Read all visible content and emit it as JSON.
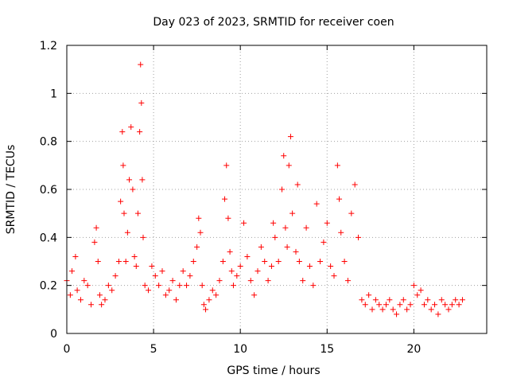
{
  "chart_data": {
    "type": "scatter",
    "title": "Day 023 of 2023, SRMTID for receiver coen",
    "xlabel": "GPS time / hours",
    "ylabel": "SRMTID / TECUs",
    "xlim": [
      0,
      24.2
    ],
    "ylim": [
      0,
      1.2
    ],
    "xticks": [
      0,
      5,
      10,
      15,
      20
    ],
    "xtick_labels": [
      "0",
      "5",
      "10",
      "15",
      "20"
    ],
    "yticks": [
      0,
      0.2,
      0.4,
      0.6,
      0.8,
      1.0,
      1.2
    ],
    "ytick_labels": [
      "0",
      "0.2",
      "0.4",
      "0.6",
      "0.8",
      "1",
      "1.2"
    ],
    "grid": true,
    "marker": "+",
    "color": "#ff0000",
    "series": [
      {
        "name": "SRMTID",
        "x": [
          0.0,
          0.2,
          0.3,
          0.5,
          0.6,
          0.8,
          1.0,
          1.2,
          1.4,
          1.6,
          1.7,
          1.8,
          1.9,
          2.0,
          2.2,
          2.4,
          2.6,
          2.8,
          3.0,
          3.1,
          3.2,
          3.25,
          3.3,
          3.4,
          3.5,
          3.6,
          3.7,
          3.8,
          3.9,
          4.0,
          4.1,
          4.2,
          4.25,
          4.3,
          4.35,
          4.4,
          4.5,
          4.7,
          4.9,
          5.1,
          5.3,
          5.5,
          5.7,
          5.9,
          6.1,
          6.3,
          6.5,
          6.7,
          6.9,
          7.1,
          7.3,
          7.5,
          7.6,
          7.7,
          7.8,
          7.9,
          8.0,
          8.2,
          8.4,
          8.6,
          8.8,
          9.0,
          9.1,
          9.2,
          9.3,
          9.4,
          9.5,
          9.6,
          9.8,
          10.0,
          10.2,
          10.4,
          10.6,
          10.8,
          11.0,
          11.2,
          11.4,
          11.6,
          11.8,
          11.9,
          12.0,
          12.2,
          12.4,
          12.5,
          12.6,
          12.7,
          12.8,
          12.9,
          13.0,
          13.2,
          13.3,
          13.4,
          13.6,
          13.8,
          14.0,
          14.2,
          14.4,
          14.6,
          14.8,
          15.0,
          15.2,
          15.4,
          15.6,
          15.7,
          15.8,
          16.0,
          16.2,
          16.4,
          16.6,
          16.8,
          17.0,
          17.2,
          17.4,
          17.6,
          17.8,
          18.0,
          18.2,
          18.4,
          18.6,
          18.8,
          19.0,
          19.2,
          19.4,
          19.6,
          19.8,
          20.0,
          20.2,
          20.4,
          20.6,
          20.8,
          21.0,
          21.2,
          21.4,
          21.6,
          21.8,
          22.0,
          22.2,
          22.4,
          22.6,
          22.8
        ],
        "y": [
          0.22,
          0.16,
          0.26,
          0.32,
          0.18,
          0.14,
          0.22,
          0.2,
          0.12,
          0.38,
          0.44,
          0.3,
          0.16,
          0.12,
          0.14,
          0.2,
          0.18,
          0.24,
          0.3,
          0.55,
          0.84,
          0.7,
          0.5,
          0.3,
          0.42,
          0.64,
          0.86,
          0.6,
          0.32,
          0.28,
          0.5,
          0.84,
          1.12,
          0.96,
          0.64,
          0.4,
          0.2,
          0.18,
          0.28,
          0.24,
          0.2,
          0.26,
          0.16,
          0.18,
          0.22,
          0.14,
          0.2,
          0.26,
          0.2,
          0.24,
          0.3,
          0.36,
          0.48,
          0.42,
          0.2,
          0.12,
          0.1,
          0.14,
          0.18,
          0.16,
          0.22,
          0.3,
          0.56,
          0.7,
          0.48,
          0.34,
          0.26,
          0.2,
          0.24,
          0.28,
          0.46,
          0.32,
          0.22,
          0.16,
          0.26,
          0.36,
          0.3,
          0.22,
          0.28,
          0.46,
          0.4,
          0.3,
          0.6,
          0.74,
          0.44,
          0.36,
          0.7,
          0.82,
          0.5,
          0.34,
          0.62,
          0.3,
          0.22,
          0.44,
          0.28,
          0.2,
          0.54,
          0.3,
          0.38,
          0.46,
          0.28,
          0.24,
          0.7,
          0.56,
          0.42,
          0.3,
          0.22,
          0.5,
          0.62,
          0.4,
          0.14,
          0.12,
          0.16,
          0.1,
          0.14,
          0.12,
          0.1,
          0.12,
          0.14,
          0.1,
          0.08,
          0.12,
          0.14,
          0.1,
          0.12,
          0.2,
          0.16,
          0.18,
          0.12,
          0.14,
          0.1,
          0.12,
          0.08,
          0.14,
          0.12,
          0.1,
          0.12,
          0.14,
          0.12,
          0.14
        ]
      }
    ]
  }
}
